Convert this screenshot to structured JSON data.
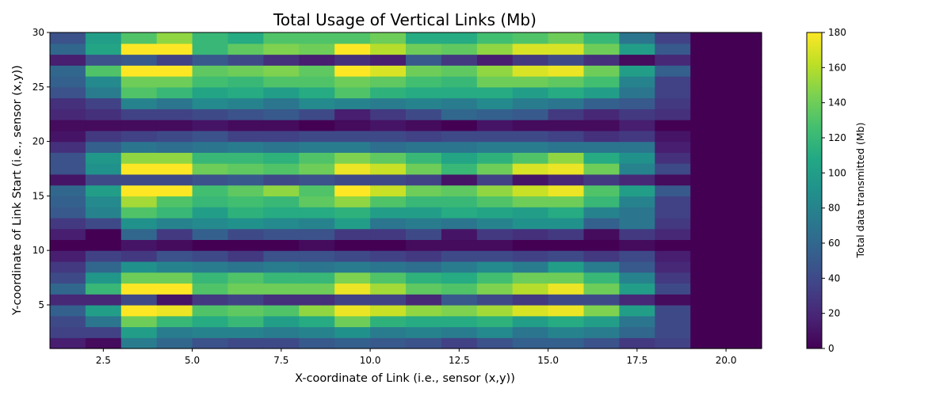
{
  "chart_data": {
    "type": "heatmap",
    "title": "Total Usage of Vertical Links (Mb)",
    "xlabel": "X-coordinate of Link (i.e., sensor (x,y))",
    "ylabel": "Y-coordinate of Link Start (i.e., sensor (x,y))",
    "colorbar_label": "Total data transmitted (Mb)",
    "colormap": "viridis",
    "xlim": [
      1,
      21
    ],
    "ylim": [
      1,
      30
    ],
    "clim": [
      0,
      180
    ],
    "x_ticks": [
      2.5,
      5.0,
      7.5,
      10.0,
      12.5,
      15.0,
      17.5,
      20.0
    ],
    "x_tick_labels": [
      "2.5",
      "5.0",
      "7.5",
      "10.0",
      "12.5",
      "15.0",
      "17.5",
      "20.0"
    ],
    "y_ticks": [
      5,
      10,
      15,
      20,
      25,
      30
    ],
    "y_tick_labels": [
      "5",
      "10",
      "15",
      "20",
      "25",
      "30"
    ],
    "colorbar_ticks": [
      0,
      20,
      40,
      60,
      80,
      100,
      120,
      140,
      160,
      180
    ],
    "colorbar_tick_labels": [
      "0",
      "20",
      "40",
      "60",
      "80",
      "100",
      "120",
      "140",
      "160",
      "180"
    ],
    "grid": false,
    "x_edges": [
      1,
      2,
      3,
      4,
      5,
      6,
      7,
      8,
      9,
      10,
      11,
      12,
      13,
      14,
      15,
      16,
      17,
      18,
      19,
      20,
      21
    ],
    "y_edges": [
      1,
      2,
      3,
      4,
      5,
      6,
      7,
      8,
      9,
      10,
      11,
      12,
      13,
      14,
      15,
      16,
      17,
      18,
      19,
      20,
      21,
      22,
      23,
      24,
      25,
      26,
      27,
      28,
      29,
      30
    ],
    "rows_from_y1": [
      [
        15,
        5,
        75,
        60,
        45,
        40,
        40,
        50,
        55,
        50,
        45,
        35,
        45,
        55,
        55,
        45,
        30,
        35,
        0,
        0
      ],
      [
        35,
        35,
        100,
        75,
        80,
        80,
        75,
        80,
        90,
        75,
        80,
        75,
        85,
        70,
        80,
        75,
        60,
        40,
        0,
        0
      ],
      [
        40,
        70,
        140,
        120,
        110,
        120,
        100,
        110,
        140,
        115,
        110,
        110,
        115,
        100,
        110,
        100,
        70,
        40,
        0,
        0
      ],
      [
        55,
        100,
        180,
        175,
        130,
        135,
        130,
        150,
        175,
        165,
        150,
        145,
        155,
        170,
        175,
        145,
        100,
        40,
        0,
        0
      ],
      [
        20,
        20,
        40,
        10,
        30,
        35,
        25,
        25,
        35,
        35,
        20,
        50,
        40,
        30,
        40,
        40,
        20,
        5,
        0,
        0
      ],
      [
        60,
        120,
        180,
        180,
        130,
        140,
        140,
        140,
        175,
        155,
        135,
        130,
        145,
        160,
        175,
        140,
        100,
        40,
        0,
        0
      ],
      [
        40,
        95,
        140,
        140,
        120,
        130,
        120,
        120,
        145,
        130,
        115,
        110,
        125,
        140,
        140,
        120,
        80,
        30,
        0,
        0
      ],
      [
        30,
        60,
        90,
        80,
        75,
        70,
        75,
        70,
        75,
        70,
        65,
        75,
        85,
        75,
        100,
        75,
        50,
        20,
        0,
        0
      ],
      [
        15,
        35,
        30,
        45,
        40,
        30,
        45,
        45,
        40,
        35,
        30,
        40,
        40,
        35,
        40,
        30,
        40,
        15,
        0,
        0
      ],
      [
        0,
        0,
        10,
        5,
        0,
        0,
        0,
        5,
        0,
        0,
        5,
        5,
        5,
        0,
        0,
        0,
        5,
        0,
        0,
        0
      ],
      [
        15,
        0,
        60,
        30,
        55,
        40,
        45,
        45,
        30,
        30,
        40,
        10,
        30,
        25,
        30,
        5,
        30,
        20,
        0,
        0
      ],
      [
        30,
        40,
        90,
        80,
        85,
        90,
        85,
        80,
        100,
        70,
        75,
        70,
        80,
        90,
        90,
        55,
        70,
        30,
        0,
        0
      ],
      [
        50,
        80,
        130,
        120,
        100,
        115,
        110,
        110,
        115,
        100,
        100,
        110,
        105,
        100,
        110,
        80,
        70,
        35,
        0,
        0
      ],
      [
        55,
        85,
        155,
        130,
        120,
        125,
        120,
        135,
        150,
        130,
        120,
        120,
        130,
        140,
        140,
        120,
        80,
        35,
        0,
        0
      ],
      [
        60,
        100,
        180,
        180,
        125,
        135,
        150,
        130,
        180,
        165,
        140,
        135,
        150,
        165,
        175,
        130,
        100,
        50,
        0,
        0
      ],
      [
        10,
        40,
        40,
        40,
        45,
        50,
        40,
        45,
        40,
        40,
        35,
        10,
        35,
        10,
        20,
        30,
        20,
        5,
        0,
        0
      ],
      [
        45,
        90,
        180,
        180,
        140,
        135,
        130,
        140,
        175,
        165,
        140,
        120,
        140,
        170,
        175,
        140,
        80,
        40,
        0,
        0
      ],
      [
        45,
        95,
        150,
        150,
        120,
        120,
        115,
        130,
        145,
        135,
        120,
        105,
        115,
        130,
        150,
        110,
        90,
        25,
        0,
        0
      ],
      [
        25,
        55,
        70,
        65,
        70,
        75,
        70,
        75,
        75,
        65,
        70,
        70,
        75,
        75,
        70,
        70,
        70,
        15,
        0,
        0
      ],
      [
        10,
        30,
        35,
        40,
        45,
        35,
        35,
        40,
        40,
        40,
        35,
        40,
        40,
        40,
        35,
        25,
        30,
        10,
        0,
        0
      ],
      [
        5,
        5,
        5,
        5,
        10,
        5,
        5,
        0,
        5,
        10,
        5,
        0,
        10,
        5,
        5,
        5,
        15,
        0,
        0,
        0
      ],
      [
        20,
        25,
        35,
        35,
        40,
        45,
        50,
        40,
        15,
        30,
        40,
        60,
        55,
        50,
        30,
        20,
        30,
        25,
        0,
        0
      ],
      [
        25,
        35,
        80,
        70,
        85,
        80,
        70,
        85,
        80,
        75,
        80,
        75,
        85,
        75,
        70,
        55,
        50,
        30,
        0,
        0
      ],
      [
        45,
        75,
        130,
        120,
        105,
        110,
        100,
        110,
        130,
        115,
        110,
        110,
        110,
        100,
        110,
        100,
        70,
        35,
        0,
        0
      ],
      [
        55,
        85,
        140,
        140,
        125,
        120,
        130,
        130,
        140,
        135,
        125,
        120,
        140,
        140,
        135,
        125,
        80,
        35,
        0,
        0
      ],
      [
        60,
        130,
        180,
        180,
        135,
        140,
        145,
        135,
        180,
        170,
        140,
        135,
        150,
        170,
        175,
        140,
        100,
        55,
        0,
        0
      ],
      [
        15,
        45,
        50,
        35,
        50,
        40,
        25,
        15,
        25,
        15,
        50,
        30,
        15,
        30,
        40,
        25,
        5,
        20,
        0,
        0
      ],
      [
        60,
        105,
        180,
        180,
        120,
        135,
        145,
        140,
        180,
        160,
        140,
        135,
        150,
        170,
        170,
        140,
        100,
        50,
        0,
        0
      ],
      [
        45,
        100,
        130,
        150,
        120,
        110,
        130,
        130,
        130,
        140,
        110,
        110,
        125,
        130,
        140,
        120,
        70,
        35,
        0,
        0
      ]
    ]
  }
}
